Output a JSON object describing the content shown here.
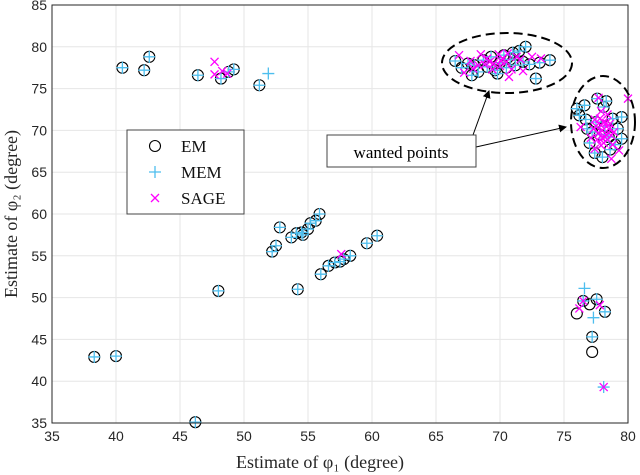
{
  "chart_data": {
    "type": "scatter",
    "xlabel": "Estimate of φ₁ (degree)",
    "ylabel": "Estimate of φ₂ (degree)",
    "xlim": [
      35,
      80
    ],
    "ylim": [
      35,
      85
    ],
    "xticks": [
      35,
      40,
      45,
      50,
      55,
      60,
      65,
      70,
      75,
      80
    ],
    "yticks": [
      35,
      40,
      45,
      50,
      55,
      60,
      65,
      70,
      75,
      80,
      85
    ],
    "grid": true,
    "legend_placement": "center-left",
    "annotation": "wanted points",
    "series": [
      {
        "name": "EM",
        "marker": "circle",
        "color": "#000000",
        "points": [
          [
            40.5,
            77.5
          ],
          [
            42.2,
            77.2
          ],
          [
            42.6,
            78.8
          ],
          [
            46.4,
            76.6
          ],
          [
            48.2,
            76.2
          ],
          [
            48.8,
            77
          ],
          [
            49.2,
            77.3
          ],
          [
            51.2,
            75.4
          ],
          [
            38.3,
            42.9
          ],
          [
            40,
            43
          ],
          [
            48,
            50.8
          ],
          [
            46.2,
            35.1
          ],
          [
            54.2,
            51
          ],
          [
            52.2,
            55.5
          ],
          [
            52.5,
            56.2
          ],
          [
            52.8,
            58.4
          ],
          [
            53.7,
            57.2
          ],
          [
            54.1,
            57.7
          ],
          [
            54.5,
            57.8
          ],
          [
            54.6,
            57.5
          ],
          [
            55,
            58.2
          ],
          [
            55.2,
            58.9
          ],
          [
            55.6,
            59.2
          ],
          [
            55.9,
            60
          ],
          [
            56,
            52.8
          ],
          [
            56.6,
            53.8
          ],
          [
            57.1,
            54.2
          ],
          [
            57.5,
            54.3
          ],
          [
            57.8,
            54.6
          ],
          [
            58.3,
            55
          ],
          [
            59.6,
            56.5
          ],
          [
            60.4,
            57.4
          ],
          [
            76.5,
            49.6
          ],
          [
            77.55,
            49.8
          ],
          [
            76,
            48.1
          ],
          [
            77,
            49.2
          ],
          [
            78.2,
            48.3
          ],
          [
            77.2,
            45.3
          ],
          [
            77.2,
            43.5
          ],
          [
            66.5,
            78.3
          ],
          [
            67,
            77.5
          ],
          [
            67.5,
            78
          ],
          [
            68,
            77.8
          ],
          [
            68.3,
            77
          ],
          [
            68.7,
            78.4
          ],
          [
            69,
            77.6
          ],
          [
            69.3,
            78.8
          ],
          [
            69.6,
            77.2
          ],
          [
            70,
            78.1
          ],
          [
            70.3,
            79
          ],
          [
            70.5,
            77.5
          ],
          [
            70.8,
            78.5
          ],
          [
            71.2,
            77.8
          ],
          [
            71.5,
            79.5
          ],
          [
            71.8,
            78.2
          ],
          [
            72,
            80
          ],
          [
            72.3,
            77.9
          ],
          [
            72.8,
            76.2
          ],
          [
            73.1,
            78.1
          ],
          [
            73.9,
            78.4
          ],
          [
            69.8,
            76.8
          ],
          [
            67.8,
            76.6
          ],
          [
            71,
            79.3
          ],
          [
            76,
            72.6
          ],
          [
            76.2,
            71.8
          ],
          [
            76.7,
            71.3
          ],
          [
            76.6,
            73
          ],
          [
            77.6,
            73.8
          ],
          [
            78.3,
            73.5
          ],
          [
            78.1,
            72.8
          ],
          [
            79.5,
            71.6
          ],
          [
            79.2,
            70.2
          ],
          [
            79.5,
            69
          ],
          [
            76.8,
            70.2
          ],
          [
            77,
            68.5
          ],
          [
            77.4,
            67.3
          ],
          [
            78,
            66.8
          ],
          [
            78.6,
            67.7
          ],
          [
            79,
            68.3
          ],
          [
            77.8,
            69.5
          ],
          [
            78.2,
            70.5
          ],
          [
            77.5,
            71
          ],
          [
            78.8,
            71.4
          ],
          [
            77.2,
            69.8
          ],
          [
            78.5,
            69.2
          ]
        ]
      },
      {
        "name": "MEM",
        "marker": "plus",
        "color": "#4DBEEE",
        "points": [
          [
            40.5,
            77.5
          ],
          [
            42.2,
            77.2
          ],
          [
            42.6,
            78.8
          ],
          [
            46.4,
            76.6
          ],
          [
            48.2,
            76.2
          ],
          [
            48.8,
            77
          ],
          [
            49.2,
            77.3
          ],
          [
            51.2,
            75.4
          ],
          [
            51.9,
            76.8
          ],
          [
            38.3,
            42.9
          ],
          [
            40,
            43
          ],
          [
            48,
            50.8
          ],
          [
            46.2,
            35.1
          ],
          [
            54.2,
            51
          ],
          [
            52.2,
            55.5
          ],
          [
            52.5,
            56.2
          ],
          [
            52.8,
            58.4
          ],
          [
            53.7,
            57.2
          ],
          [
            54.1,
            57.7
          ],
          [
            54.5,
            57.8
          ],
          [
            54.6,
            57.5
          ],
          [
            55,
            58.2
          ],
          [
            55.2,
            58.9
          ],
          [
            55.6,
            59.2
          ],
          [
            55.9,
            60
          ],
          [
            56,
            52.8
          ],
          [
            56.6,
            53.8
          ],
          [
            57.1,
            54.2
          ],
          [
            57.5,
            54.3
          ],
          [
            57.8,
            54.6
          ],
          [
            58.3,
            55
          ],
          [
            59.6,
            56.5
          ],
          [
            60.4,
            57.4
          ],
          [
            76.5,
            49.6
          ],
          [
            77.55,
            49.8
          ],
          [
            78.2,
            48.3
          ],
          [
            77.2,
            45.3
          ],
          [
            76.6,
            51.1
          ],
          [
            77.3,
            47.6
          ],
          [
            78.1,
            39.3
          ],
          [
            66.5,
            78.3
          ],
          [
            67,
            77.5
          ],
          [
            67.5,
            78
          ],
          [
            68,
            77.8
          ],
          [
            68.3,
            77
          ],
          [
            68.7,
            78.4
          ],
          [
            69,
            77.6
          ],
          [
            69.3,
            78.8
          ],
          [
            69.6,
            77.2
          ],
          [
            70,
            78.1
          ],
          [
            70.3,
            79
          ],
          [
            70.5,
            77.5
          ],
          [
            70.8,
            78.5
          ],
          [
            71.2,
            77.8
          ],
          [
            71.5,
            79.5
          ],
          [
            71.8,
            78.2
          ],
          [
            72,
            80
          ],
          [
            72.3,
            77.9
          ],
          [
            72.8,
            76.2
          ],
          [
            73.1,
            78.1
          ],
          [
            73.9,
            78.4
          ],
          [
            69.8,
            76.8
          ],
          [
            67.8,
            76.6
          ],
          [
            71,
            79.3
          ],
          [
            76,
            72.6
          ],
          [
            76.2,
            71.8
          ],
          [
            76.7,
            71.3
          ],
          [
            76.6,
            73
          ],
          [
            77.6,
            73.8
          ],
          [
            78.3,
            73.5
          ],
          [
            78.1,
            72.8
          ],
          [
            79.5,
            71.6
          ],
          [
            79.2,
            70.2
          ],
          [
            79.5,
            69
          ],
          [
            76.8,
            70.2
          ],
          [
            77,
            68.5
          ],
          [
            77.4,
            67.3
          ],
          [
            78,
            66.8
          ],
          [
            78.6,
            67.7
          ],
          [
            79,
            68.3
          ],
          [
            77.8,
            69.5
          ],
          [
            78.2,
            70.5
          ],
          [
            77.5,
            71
          ],
          [
            78.8,
            71.4
          ],
          [
            77.2,
            69.8
          ],
          [
            78.5,
            69.2
          ]
        ]
      },
      {
        "name": "SAGE",
        "marker": "x",
        "color": "#FF00FF",
        "points": [
          [
            47.7,
            78.2
          ],
          [
            47.7,
            76.7
          ],
          [
            48.3,
            77.1
          ],
          [
            48.7,
            76.8
          ],
          [
            57.6,
            55.2
          ],
          [
            76.5,
            49.6
          ],
          [
            76.2,
            48.7
          ],
          [
            77.8,
            49.1
          ],
          [
            78.1,
            39.3
          ],
          [
            66.8,
            79
          ],
          [
            67.7,
            78.3
          ],
          [
            68.5,
            79.1
          ],
          [
            69,
            78.6
          ],
          [
            69.5,
            78
          ],
          [
            70,
            77.7
          ],
          [
            70.2,
            78.6
          ],
          [
            70.5,
            78.2
          ],
          [
            70.9,
            77.3
          ],
          [
            71.3,
            78.8
          ],
          [
            68.3,
            77.8
          ],
          [
            69.4,
            77.3
          ],
          [
            72.5,
            78.8
          ],
          [
            73.2,
            78.6
          ],
          [
            70.7,
            76.4
          ],
          [
            71.8,
            77.1
          ],
          [
            67.2,
            76.9
          ],
          [
            69.9,
            79.1
          ],
          [
            68.8,
            77.9
          ],
          [
            70.1,
            78.3
          ],
          [
            71.6,
            78.5
          ],
          [
            69.2,
            78.2
          ],
          [
            70.6,
            79.2
          ],
          [
            67.9,
            77.4
          ],
          [
            77.7,
            73.9
          ],
          [
            80,
            73.8
          ],
          [
            78,
            70
          ],
          [
            77.5,
            70.5
          ],
          [
            78.3,
            69.5
          ],
          [
            78.6,
            70.8
          ],
          [
            77.8,
            71.4
          ],
          [
            77.1,
            69.1
          ],
          [
            78.9,
            69.8
          ],
          [
            78.1,
            68.5
          ],
          [
            77.4,
            67.8
          ],
          [
            78.7,
            66.6
          ],
          [
            79.3,
            67.6
          ],
          [
            77.9,
            72.3
          ],
          [
            76.3,
            70.4
          ],
          [
            78.4,
            71.9
          ],
          [
            77.6,
            68.9
          ],
          [
            78.8,
            68.3
          ],
          [
            77.3,
            70.2
          ],
          [
            78.2,
            69.2
          ],
          [
            77.9,
            70.6
          ],
          [
            78.5,
            70.2
          ],
          [
            77.7,
            69.7
          ],
          [
            78.1,
            71
          ],
          [
            78.4,
            68.9
          ],
          [
            77.9,
            68.2
          ],
          [
            78.7,
            69.4
          ],
          [
            77.4,
            71.3
          ],
          [
            78.3,
            70.9
          ],
          [
            78,
            69.1
          ]
        ]
      }
    ]
  }
}
